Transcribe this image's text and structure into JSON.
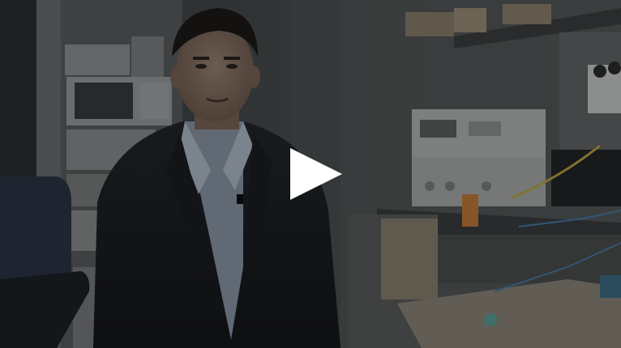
{
  "video": {
    "state": "paused",
    "play_icon": "play-icon",
    "colors": {
      "overlay_tint": "#2a2c2e",
      "play_icon": "#ffffff"
    }
  }
}
